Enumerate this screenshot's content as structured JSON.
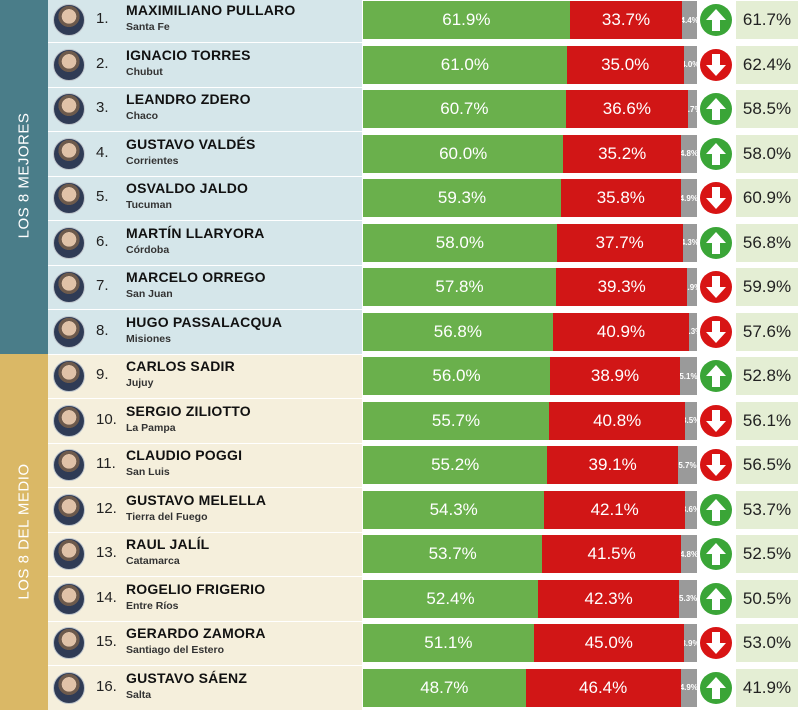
{
  "groups": [
    {
      "label": "LOS 8 MEJORES",
      "band_color": "#4a7d89",
      "bg_color": "#d5e6ea",
      "first_row": 0,
      "row_count": 8
    },
    {
      "label": "LOS 8 DEL MEDIO",
      "band_color": "#dab866",
      "bg_color": "#f5efdc",
      "first_row": 8,
      "row_count": 8
    }
  ],
  "colors": {
    "approve": "#6ab04c",
    "disapprove": "#d11616",
    "other": "#9a9a9a",
    "up": "#3aa537",
    "down": "#d81414",
    "previous_bg": "#e4eed4"
  },
  "rows": [
    {
      "rank": "1.",
      "name": "MAXIMILIANO PULLARO",
      "province": "Santa Fe",
      "approve": "61.9%",
      "disapprove": "33.7%",
      "other": "4.4%",
      "trend": "up",
      "previous": "61.7%"
    },
    {
      "rank": "2.",
      "name": "IGNACIO TORRES",
      "province": "Chubut",
      "approve": "61.0%",
      "disapprove": "35.0%",
      "other": "4.0%",
      "trend": "down",
      "previous": "62.4%"
    },
    {
      "rank": "3.",
      "name": "LEANDRO ZDERO",
      "province": "Chaco",
      "approve": "60.7%",
      "disapprove": "36.6%",
      "other": "2.7%",
      "trend": "up",
      "previous": "58.5%"
    },
    {
      "rank": "4.",
      "name": "GUSTAVO VALDÉS",
      "province": "Corrientes",
      "approve": "60.0%",
      "disapprove": "35.2%",
      "other": "4.8%",
      "trend": "up",
      "previous": "58.0%"
    },
    {
      "rank": "5.",
      "name": "OSVALDO JALDO",
      "province": "Tucuman",
      "approve": "59.3%",
      "disapprove": "35.8%",
      "other": "4.9%",
      "trend": "down",
      "previous": "60.9%"
    },
    {
      "rank": "6.",
      "name": "MARTÍN LLARYORA",
      "province": "Córdoba",
      "approve": "58.0%",
      "disapprove": "37.7%",
      "other": "4.3%",
      "trend": "up",
      "previous": "56.8%"
    },
    {
      "rank": "7.",
      "name": "MARCELO ORREGO",
      "province": "San Juan",
      "approve": "57.8%",
      "disapprove": "39.3%",
      "other": "2.9%",
      "trend": "down",
      "previous": "59.9%"
    },
    {
      "rank": "8.",
      "name": "HUGO PASSALACQUA",
      "province": "Misiones",
      "approve": "56.8%",
      "disapprove": "40.9%",
      "other": "2.3%",
      "trend": "down",
      "previous": "57.6%"
    },
    {
      "rank": "9.",
      "name": "CARLOS SADIR",
      "province": "Jujuy",
      "approve": "56.0%",
      "disapprove": "38.9%",
      "other": "5.1%",
      "trend": "up",
      "previous": "52.8%"
    },
    {
      "rank": "10.",
      "name": "SERGIO ZILIOTTO",
      "province": "La Pampa",
      "approve": "55.7%",
      "disapprove": "40.8%",
      "other": "3.5%",
      "trend": "down",
      "previous": "56.1%"
    },
    {
      "rank": "11.",
      "name": "CLAUDIO POGGI",
      "province": "San Luis",
      "approve": "55.2%",
      "disapprove": "39.1%",
      "other": "5.7%",
      "trend": "down",
      "previous": "56.5%"
    },
    {
      "rank": "12.",
      "name": "GUSTAVO MELELLA",
      "province": "Tierra del Fuego",
      "approve": "54.3%",
      "disapprove": "42.1%",
      "other": "3.6%",
      "trend": "up",
      "previous": "53.7%"
    },
    {
      "rank": "13.",
      "name": "RAUL JALÍL",
      "province": "Catamarca",
      "approve": "53.7%",
      "disapprove": "41.5%",
      "other": "4.8%",
      "trend": "up",
      "previous": "52.5%"
    },
    {
      "rank": "14.",
      "name": "ROGELIO FRIGERIO",
      "province": "Entre Ríos",
      "approve": "52.4%",
      "disapprove": "42.3%",
      "other": "5.3%",
      "trend": "up",
      "previous": "50.5%"
    },
    {
      "rank": "15.",
      "name": "GERARDO ZAMORA",
      "province": "Santiago del Estero",
      "approve": "51.1%",
      "disapprove": "45.0%",
      "other": "3.9%",
      "trend": "down",
      "previous": "53.0%"
    },
    {
      "rank": "16.",
      "name": "GUSTAVO SÁENZ",
      "province": "Salta",
      "approve": "48.7%",
      "disapprove": "46.4%",
      "other": "4.9%",
      "trend": "up",
      "previous": "41.9%"
    }
  ],
  "chart_data": {
    "type": "bar",
    "stacked": true,
    "orientation": "horizontal",
    "categories": [
      "MAXIMILIANO PULLARO",
      "IGNACIO TORRES",
      "LEANDRO ZDERO",
      "GUSTAVO VALDÉS",
      "OSVALDO JALDO",
      "MARTÍN LLARYORA",
      "MARCELO ORREGO",
      "HUGO PASSALACQUA",
      "CARLOS SADIR",
      "SERGIO ZILIOTTO",
      "CLAUDIO POGGI",
      "GUSTAVO MELELLA",
      "RAUL JALÍL",
      "ROGELIO FRIGERIO",
      "GERARDO ZAMORA",
      "GUSTAVO SÁENZ"
    ],
    "series": [
      {
        "values": [
          61.9,
          61.0,
          60.7,
          60.0,
          59.3,
          58.0,
          57.8,
          56.8,
          56.0,
          55.7,
          55.2,
          54.3,
          53.7,
          52.4,
          51.1,
          48.7
        ],
        "color": "#6ab04c"
      },
      {
        "values": [
          33.7,
          35.0,
          36.6,
          35.2,
          35.8,
          37.7,
          39.3,
          40.9,
          38.9,
          40.8,
          39.1,
          42.1,
          41.5,
          42.3,
          45.0,
          46.4
        ],
        "color": "#d11616"
      },
      {
        "values": [
          4.4,
          4.0,
          2.7,
          4.8,
          4.9,
          4.3,
          2.9,
          2.3,
          5.1,
          3.5,
          5.7,
          3.6,
          4.8,
          5.3,
          3.9,
          4.9
        ],
        "color": "#9a9a9a"
      }
    ],
    "previous_values": [
      61.7,
      62.4,
      58.5,
      58.0,
      60.9,
      56.8,
      59.9,
      57.6,
      52.8,
      56.1,
      56.5,
      53.7,
      52.5,
      50.5,
      53.0,
      41.9
    ],
    "trend": [
      "up",
      "down",
      "up",
      "up",
      "down",
      "up",
      "down",
      "down",
      "up",
      "down",
      "down",
      "up",
      "up",
      "up",
      "down",
      "up"
    ],
    "xlim": [
      0,
      100
    ],
    "legend": "none"
  }
}
